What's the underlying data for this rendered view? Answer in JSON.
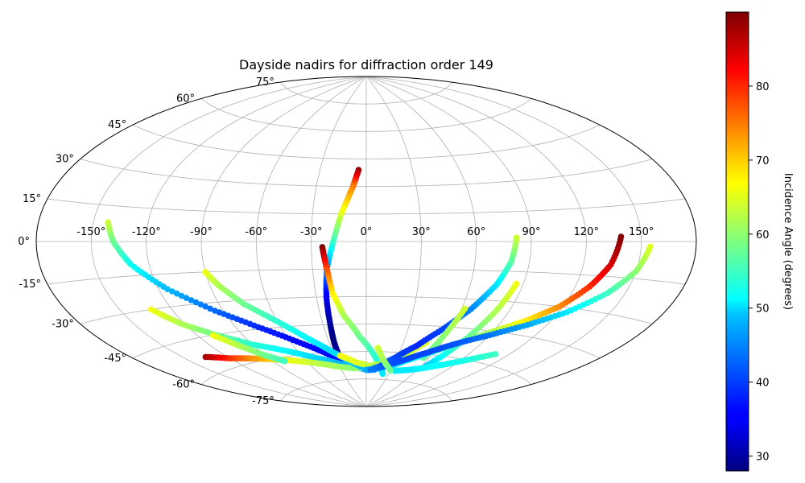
{
  "chart_data": {
    "type": "scatter",
    "projection": "aitoff",
    "title": "Dayside nadirs for diffraction order 149",
    "longitude_ticks": [
      "-150°",
      "-120°",
      "-90°",
      "-60°",
      "-30°",
      "0°",
      "30°",
      "60°",
      "90°",
      "120°",
      "150°"
    ],
    "latitude_ticks": [
      "75°",
      "60°",
      "45°",
      "30°",
      "15°",
      "0°",
      "-15°",
      "-30°",
      "-45°",
      "-60°",
      "-75°"
    ],
    "grid": true,
    "colormap": "jet",
    "colorbar": {
      "label": "Incidence Angle (degrees)",
      "range": [
        28,
        90
      ],
      "ticks": [
        "30",
        "40",
        "50",
        "60",
        "70",
        "80"
      ]
    },
    "series": [
      {
        "lon": [
          -5,
          -8,
          -14,
          -18,
          -22,
          -24,
          -25,
          -26,
          -26
        ],
        "lat": [
          39,
          30,
          15,
          0,
          -15,
          -30,
          -45,
          -55,
          -60
        ],
        "inc": [
          89,
          75,
          65,
          55,
          44,
          35,
          30,
          28,
          30
        ]
      },
      {
        "lon": [
          -24,
          -22,
          -20,
          -15,
          -5,
          5,
          15,
          22
        ],
        "lat": [
          -3,
          -15,
          -28,
          -40,
          -52,
          -60,
          -68,
          -72
        ],
        "inc": [
          90,
          78,
          68,
          62,
          58,
          55,
          52,
          50
        ]
      },
      {
        "lon": [
          -142,
          -138,
          -130,
          -115,
          -95,
          -75,
          -55,
          -35,
          -15,
          0
        ],
        "lat": [
          8,
          0,
          -10,
          -22,
          -34,
          -44,
          -53,
          -61,
          -67,
          -70
        ],
        "inc": [
          64,
          58,
          52,
          47,
          42,
          38,
          36,
          36,
          38,
          42
        ]
      },
      {
        "lon": [
          -132,
          -122,
          -108,
          -90,
          -70,
          -50,
          -30,
          -10,
          10
        ],
        "lat": [
          -30,
          -38,
          -45,
          -52,
          -57,
          -62,
          -66,
          -69,
          -70
        ],
        "inc": [
          66,
          62,
          58,
          54,
          51,
          49,
          47,
          46,
          46
        ]
      },
      {
        "lon": [
          -135,
          -120,
          -105,
          -90,
          -75,
          -60,
          -45,
          -30,
          -15,
          0,
          10
        ],
        "lat": [
          -53,
          -56,
          -58,
          -60,
          -62,
          -64,
          -66,
          -68,
          -69,
          -69,
          -67
        ],
        "inc": [
          88,
          80,
          74,
          70,
          66,
          64,
          62,
          61,
          60,
          60,
          62
        ]
      },
      {
        "lon": [
          -90,
          -85,
          -75,
          -60,
          -45,
          -30,
          -15,
          0
        ],
        "lat": [
          -15,
          -22,
          -32,
          -42,
          -52,
          -60,
          -66,
          -70
        ],
        "inc": [
          66,
          62,
          58,
          54,
          51,
          49,
          48,
          47
        ]
      },
      {
        "lon": [
          -110,
          -100,
          -90,
          -80
        ],
        "lat": [
          -45,
          -52,
          -58,
          -62
        ],
        "inc": [
          66,
          62,
          58,
          55
        ]
      },
      {
        "lon": [
          -25,
          -10,
          5,
          20,
          35,
          48
        ],
        "lat": [
          -62,
          -66,
          -68,
          -66,
          -62,
          -54
        ],
        "inc": [
          66,
          65,
          63,
          62,
          63,
          65
        ]
      },
      {
        "lon": [
          82,
          80,
          75,
          66,
          55,
          42,
          28,
          15,
          5,
          0
        ],
        "lat": [
          2,
          -10,
          -22,
          -35,
          -46,
          -56,
          -63,
          -68,
          -70,
          -70
        ],
        "inc": [
          64,
          57,
          50,
          44,
          40,
          38,
          40,
          42,
          45,
          48
        ]
      },
      {
        "lon": [
          86,
          82,
          76,
          70,
          65
        ],
        "lat": [
          -21,
          -35,
          -50,
          -60,
          -66
        ],
        "inc": [
          66,
          62,
          57,
          52,
          48
        ]
      },
      {
        "lon": [
          62,
          58,
          55
        ],
        "lat": [
          -35,
          -50,
          -62
        ],
        "inc": [
          64,
          60,
          57
        ]
      },
      {
        "lon": [
          139,
          135,
          128,
          118,
          105,
          90,
          75,
          60,
          45,
          30,
          15,
          0
        ],
        "lat": [
          2,
          -10,
          -20,
          -30,
          -38,
          -45,
          -52,
          -58,
          -63,
          -67,
          -69,
          -70
        ],
        "inc": [
          90,
          85,
          80,
          74,
          68,
          62,
          58,
          54,
          51,
          49,
          47,
          46
        ]
      },
      {
        "lon": [
          155,
          150,
          140,
          125,
          108,
          90,
          72,
          55,
          38,
          20,
          5
        ],
        "lat": [
          -2,
          -12,
          -22,
          -32,
          -40,
          -47,
          -53,
          -59,
          -64,
          -68,
          -70
        ],
        "inc": [
          65,
          60,
          55,
          50,
          46,
          43,
          41,
          40,
          40,
          41,
          43
        ]
      },
      {
        "lon": [
          110,
          95,
          80,
          65,
          50,
          35
        ],
        "lat": [
          -55,
          -60,
          -64,
          -67,
          -69,
          -70
        ],
        "inc": [
          55,
          53,
          52,
          51,
          50,
          50
        ]
      },
      {
        "lon": [
          10,
          15,
          22,
          30
        ],
        "lat": [
          -58,
          -63,
          -67,
          -70
        ],
        "inc": [
          64,
          62,
          60,
          58
        ]
      }
    ]
  }
}
